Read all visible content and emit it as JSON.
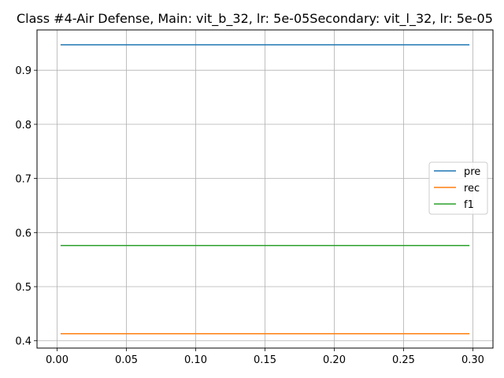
{
  "chart_data": {
    "type": "line",
    "title": "Class #4-Air Defense, Main: vit_b_32, lr: 5e-05Secondary: vit_l_32, lr: 5e-05",
    "xlabel": "",
    "ylabel": "",
    "xlim": [
      -0.0145,
      0.3145
    ],
    "ylim": [
      0.3865,
      0.9745
    ],
    "x_ticks": [
      0.0,
      0.05,
      0.1,
      0.15,
      0.2,
      0.25,
      0.3
    ],
    "x_tick_labels": [
      "0.00",
      "0.05",
      "0.10",
      "0.15",
      "0.20",
      "0.25",
      "0.30"
    ],
    "y_ticks": [
      0.4,
      0.5,
      0.6,
      0.7,
      0.8,
      0.9
    ],
    "y_tick_labels": [
      "0.4",
      "0.5",
      "0.6",
      "0.7",
      "0.8",
      "0.9"
    ],
    "grid": true,
    "legend_position": "center-right",
    "x": [
      0.0025,
      0.2975
    ],
    "series": [
      {
        "name": "pre",
        "color": "#1f77b4",
        "values": [
          0.947,
          0.947
        ]
      },
      {
        "name": "rec",
        "color": "#ff7f0e",
        "values": [
          0.413,
          0.413
        ]
      },
      {
        "name": "f1",
        "color": "#2ca02c",
        "values": [
          0.576,
          0.576
        ]
      }
    ]
  }
}
